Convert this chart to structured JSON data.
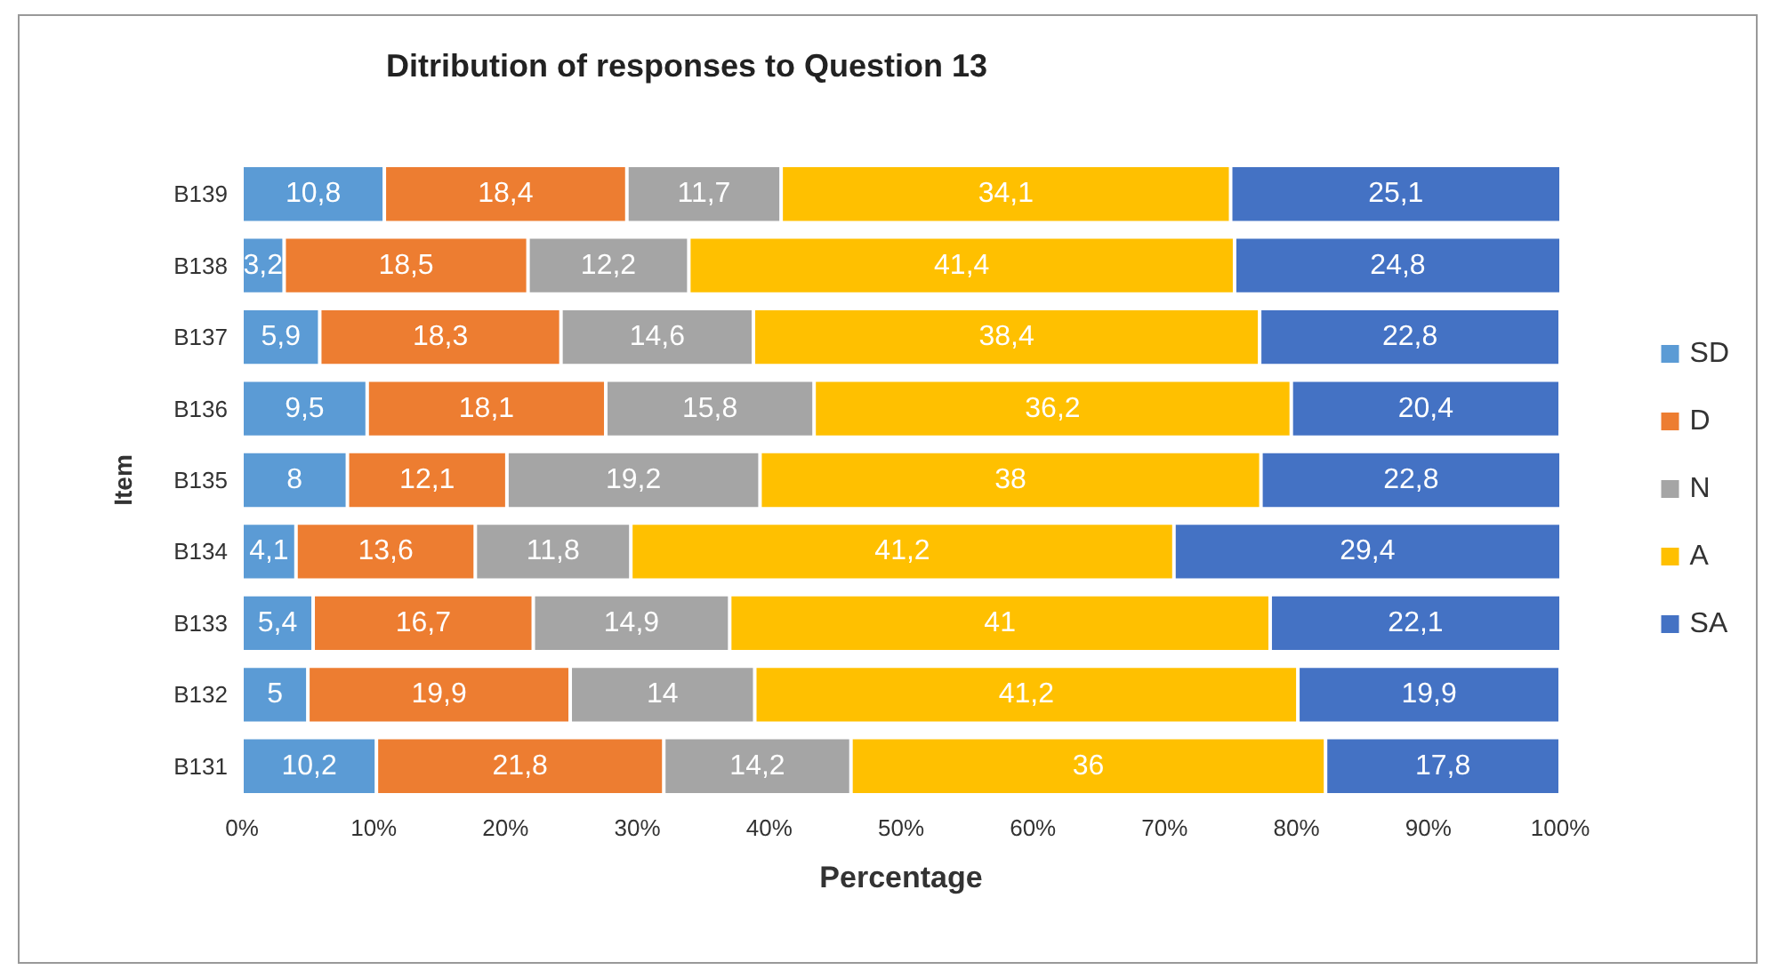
{
  "chart_data": {
    "type": "bar",
    "orientation": "horizontal",
    "stacked": true,
    "title": "Ditribution of responses to Question 13",
    "xlabel": "Percentage",
    "ylabel": "Item",
    "categories": [
      "B139",
      "B138",
      "B137",
      "B136",
      "B135",
      "B134",
      "B133",
      "B132",
      "B131"
    ],
    "series": [
      {
        "name": "SD",
        "color": "#5b9bd5",
        "values": [
          10.8,
          3.2,
          5.9,
          9.5,
          8,
          4.1,
          5.4,
          5,
          10.2
        ],
        "value_labels": [
          "10,8",
          "3,2",
          "5,9",
          "9,5",
          "8",
          "4,1",
          "5,4",
          "5",
          "10,2"
        ]
      },
      {
        "name": "D",
        "color": "#ed7d31",
        "values": [
          18.4,
          18.5,
          18.3,
          18.1,
          12.1,
          13.6,
          16.7,
          19.9,
          21.8
        ],
        "value_labels": [
          "18,4",
          "18,5",
          "18,3",
          "18,1",
          "12,1",
          "13,6",
          "16,7",
          "19,9",
          "21,8"
        ]
      },
      {
        "name": "N",
        "color": "#a5a5a5",
        "values": [
          11.7,
          12.2,
          14.6,
          15.8,
          19.2,
          11.8,
          14.9,
          14,
          14.2
        ],
        "value_labels": [
          "11,7",
          "12,2",
          "14,6",
          "15,8",
          "19,2",
          "11,8",
          "14,9",
          "14",
          "14,2"
        ]
      },
      {
        "name": "A",
        "color": "#ffc000",
        "values": [
          34.1,
          41.4,
          38.4,
          36.2,
          38,
          41.2,
          41,
          41.2,
          36
        ],
        "value_labels": [
          "34,1",
          "41,4",
          "38,4",
          "36,2",
          "38",
          "41,2",
          "41",
          "41,2",
          "36"
        ]
      },
      {
        "name": "SA",
        "color": "#4472c4",
        "values": [
          25.1,
          24.8,
          22.8,
          20.4,
          22.8,
          29.4,
          22.1,
          19.9,
          17.8
        ],
        "value_labels": [
          "25,1",
          "24,8",
          "22,8",
          "20,4",
          "22,8",
          "29,4",
          "22,1",
          "19,9",
          "17,8"
        ]
      }
    ],
    "xlim": [
      0,
      100
    ],
    "xticks": [
      {
        "value": 0,
        "label": "0%"
      },
      {
        "value": 10,
        "label": "10%"
      },
      {
        "value": 20,
        "label": "20%"
      },
      {
        "value": 30,
        "label": "30%"
      },
      {
        "value": 40,
        "label": "40%"
      },
      {
        "value": 50,
        "label": "50%"
      },
      {
        "value": 60,
        "label": "60%"
      },
      {
        "value": 70,
        "label": "70%"
      },
      {
        "value": 80,
        "label": "80%"
      },
      {
        "value": 90,
        "label": "90%"
      },
      {
        "value": 100,
        "label": "100%"
      }
    ],
    "grid": false,
    "legend": "right"
  }
}
